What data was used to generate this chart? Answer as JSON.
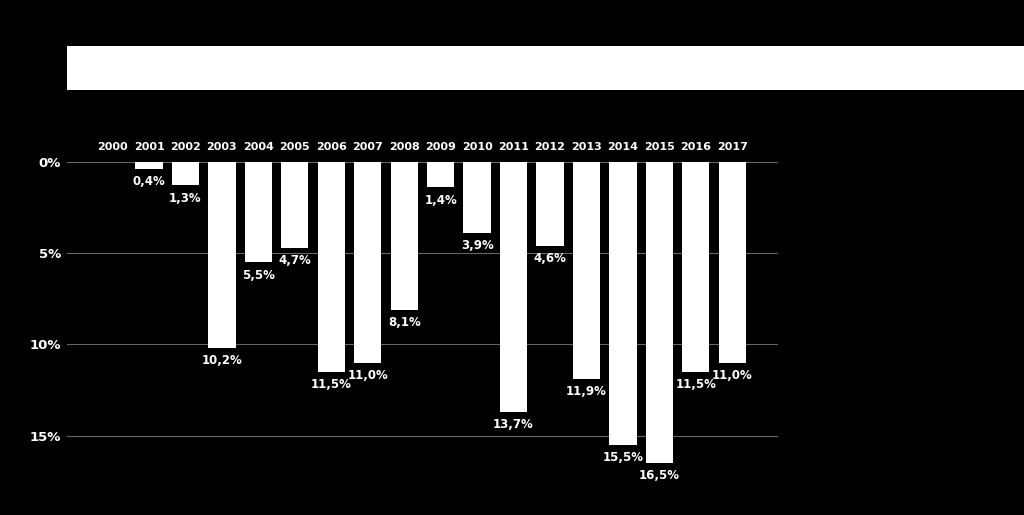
{
  "years": [
    "2000",
    "2001",
    "2002",
    "2003",
    "2004",
    "2005",
    "2006",
    "2007",
    "2008",
    "2009",
    "2010",
    "2011",
    "2012",
    "2013",
    "2014",
    "2015",
    "2016",
    "2017"
  ],
  "values": [
    0.0,
    -0.4,
    -1.3,
    -10.2,
    -5.5,
    -4.7,
    -11.5,
    -11.0,
    -8.1,
    -1.4,
    -3.9,
    -13.7,
    -4.6,
    -11.9,
    -15.5,
    -16.5,
    -11.5,
    -11.0
  ],
  "labels": [
    "",
    "0,4%",
    "1,3%",
    "10,2%",
    "5,5%",
    "4,7%",
    "11,5%",
    "11,0%",
    "8,1%",
    "1,4%",
    "3,9%",
    "13,7%",
    "4,6%",
    "11,9%",
    "15,5%",
    "16,5%",
    "11,5%",
    "11,0%"
  ],
  "background_color": "#000000",
  "text_color": "#ffffff",
  "grid_color": "#666666",
  "yticks": [
    0,
    -5,
    -10,
    -15
  ],
  "ytick_labels": [
    "0%",
    "5%",
    "10%",
    "15%"
  ],
  "ylim": [
    -18.5,
    3.5
  ],
  "bar_width": 0.75,
  "label_fontsize": 8.5,
  "year_fontsize": 8.0,
  "ytick_fontsize": 9.5
}
